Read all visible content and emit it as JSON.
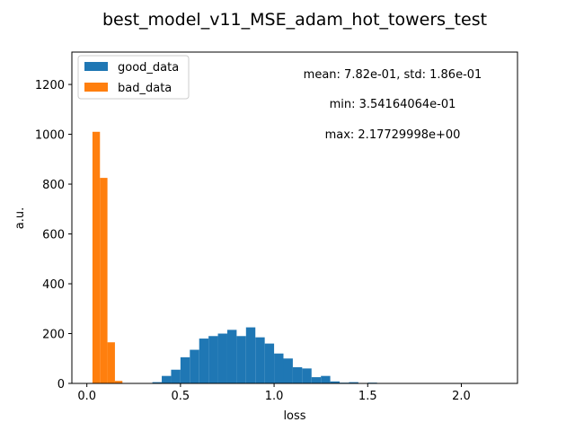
{
  "chart_data": {
    "type": "bar",
    "title": "best_model_v11_MSE_adam_hot_towers_test",
    "xlabel": "loss",
    "ylabel": "a.u.",
    "xlim": [
      -0.08,
      2.3
    ],
    "ylim": [
      0,
      1330
    ],
    "xticks": [
      0.0,
      0.5,
      1.0,
      1.5,
      2.0
    ],
    "xtick_labels": [
      "0.0",
      "0.5",
      "1.0",
      "1.5",
      "2.0"
    ],
    "yticks": [
      0,
      200,
      400,
      600,
      800,
      1000,
      1200
    ],
    "ytick_labels": [
      "0",
      "200",
      "400",
      "600",
      "800",
      "1000",
      "1200"
    ],
    "legend_position": "top-left",
    "annotations": [
      "mean: 7.82e-01, std: 1.86e-01",
      "min: 3.54164064e-01",
      "max: 2.17729998e+00"
    ],
    "series": [
      {
        "name": "good_data",
        "color": "#1f77b4",
        "bins": [
          {
            "x0": 0.35,
            "x1": 0.4,
            "count": 5
          },
          {
            "x0": 0.4,
            "x1": 0.45,
            "count": 30
          },
          {
            "x0": 0.45,
            "x1": 0.5,
            "count": 55
          },
          {
            "x0": 0.5,
            "x1": 0.55,
            "count": 105
          },
          {
            "x0": 0.55,
            "x1": 0.6,
            "count": 135
          },
          {
            "x0": 0.6,
            "x1": 0.65,
            "count": 180
          },
          {
            "x0": 0.65,
            "x1": 0.7,
            "count": 190
          },
          {
            "x0": 0.7,
            "x1": 0.75,
            "count": 200
          },
          {
            "x0": 0.75,
            "x1": 0.8,
            "count": 215
          },
          {
            "x0": 0.8,
            "x1": 0.85,
            "count": 190
          },
          {
            "x0": 0.85,
            "x1": 0.9,
            "count": 225
          },
          {
            "x0": 0.9,
            "x1": 0.95,
            "count": 185
          },
          {
            "x0": 0.95,
            "x1": 1.0,
            "count": 160
          },
          {
            "x0": 1.0,
            "x1": 1.05,
            "count": 120
          },
          {
            "x0": 1.05,
            "x1": 1.1,
            "count": 100
          },
          {
            "x0": 1.1,
            "x1": 1.15,
            "count": 65
          },
          {
            "x0": 1.15,
            "x1": 1.2,
            "count": 60
          },
          {
            "x0": 1.2,
            "x1": 1.25,
            "count": 25
          },
          {
            "x0": 1.25,
            "x1": 1.3,
            "count": 30
          },
          {
            "x0": 1.3,
            "x1": 1.35,
            "count": 8
          },
          {
            "x0": 1.35,
            "x1": 1.4,
            "count": 3
          },
          {
            "x0": 1.4,
            "x1": 1.45,
            "count": 5
          },
          {
            "x0": 1.5,
            "x1": 1.55,
            "count": 3
          }
        ]
      },
      {
        "name": "bad_data",
        "color": "#ff7f0e",
        "bins": [
          {
            "x0": 0.03,
            "x1": 0.07,
            "count": 1010
          },
          {
            "x0": 0.07,
            "x1": 0.11,
            "count": 825
          },
          {
            "x0": 0.11,
            "x1": 0.15,
            "count": 165
          },
          {
            "x0": 0.15,
            "x1": 0.19,
            "count": 10
          }
        ]
      }
    ]
  }
}
